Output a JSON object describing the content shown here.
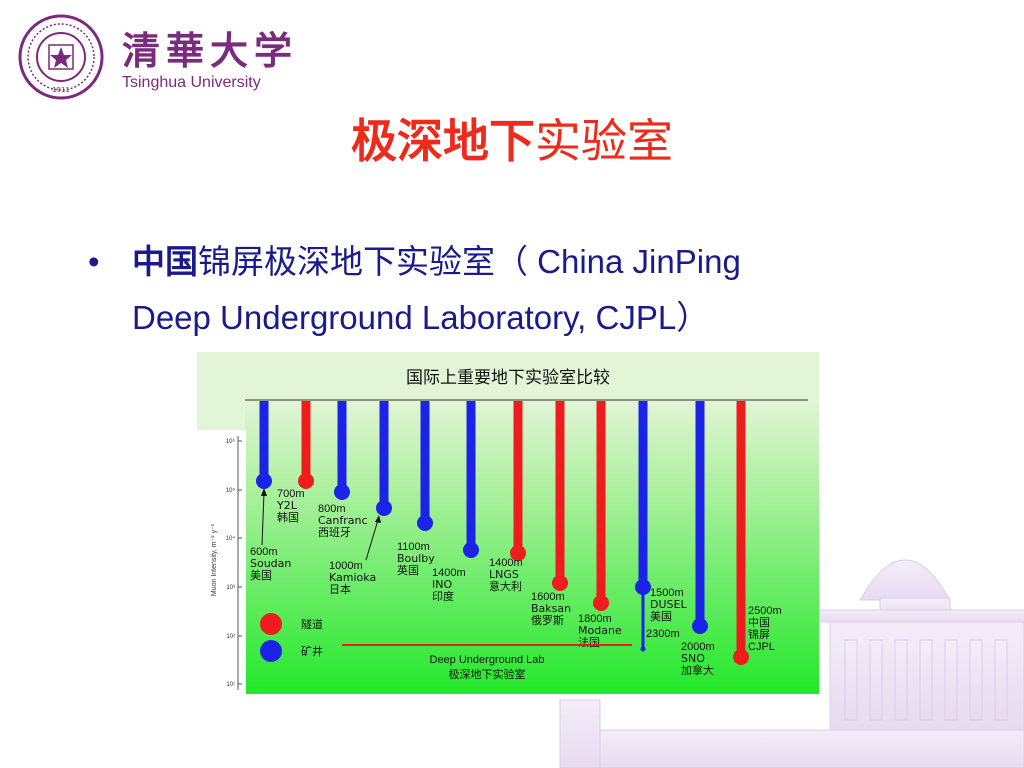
{
  "logo": {
    "chinese_name": "清華大学",
    "english_name": "Tsinghua University",
    "seal_year": "1911"
  },
  "title": {
    "bold_part": "极深地下",
    "regular_part": "实验室"
  },
  "bullet": {
    "bullet_char": "•",
    "bold_part": "中国",
    "line1_rest": "锦屏极深地下实验室（ China JinPing",
    "line2": "Deep Underground Laboratory,   CJPL）"
  },
  "chart_data": {
    "type": "diagram",
    "title": "国际上重要地下实验室比较",
    "ylabel": "Muon Intensity, m⁻² y⁻¹",
    "yticks": [
      "10⁶",
      "10⁵",
      "10⁴",
      "10³",
      "10²",
      "10¹"
    ],
    "legend": [
      {
        "color": "#ee1c1c",
        "label": "隧道"
      },
      {
        "color": "#1b24e6",
        "label": "矿井"
      }
    ],
    "bottom_label_en": "Deep Underground Lab",
    "bottom_label_cn": "极深地下实验室",
    "colors": {
      "tunnel": "#ee1c1c",
      "mine": "#1b24e6",
      "background_top": "#e2f5d6",
      "background_bottom": "#22e82a"
    },
    "labs": [
      {
        "depth": "600m",
        "name": "Soudan",
        "country": "美国",
        "type": "mine"
      },
      {
        "depth": "700m",
        "name": "Y2L",
        "country": "韩国",
        "type": "tunnel"
      },
      {
        "depth": "800m",
        "name": "Canfranc",
        "country": "西班牙",
        "type": "mine"
      },
      {
        "depth": "1000m",
        "name": "Kamioka",
        "country": "日本",
        "type": "mine"
      },
      {
        "depth": "1100m",
        "name": "Boulby",
        "country": "英国",
        "type": "mine"
      },
      {
        "depth": "1400m",
        "name": "INO",
        "country": "印度",
        "type": "mine"
      },
      {
        "depth": "1400m",
        "name": "LNGS",
        "country": "意大利",
        "type": "tunnel"
      },
      {
        "depth": "1600m",
        "name": "Baksan",
        "country": "俄罗斯",
        "type": "tunnel"
      },
      {
        "depth": "1800m",
        "name": "Modane",
        "country": "法国",
        "type": "tunnel"
      },
      {
        "depth": "1500m",
        "name": "DUSEL",
        "country": "美国",
        "extra": "2300m",
        "type": "mine"
      },
      {
        "depth": "2000m",
        "name": "SNO",
        "country": "加拿大",
        "type": "mine"
      },
      {
        "depth": "2500m",
        "name": "中国",
        "country": "锦屏",
        "extra": "CJPL",
        "type": "tunnel"
      }
    ]
  }
}
